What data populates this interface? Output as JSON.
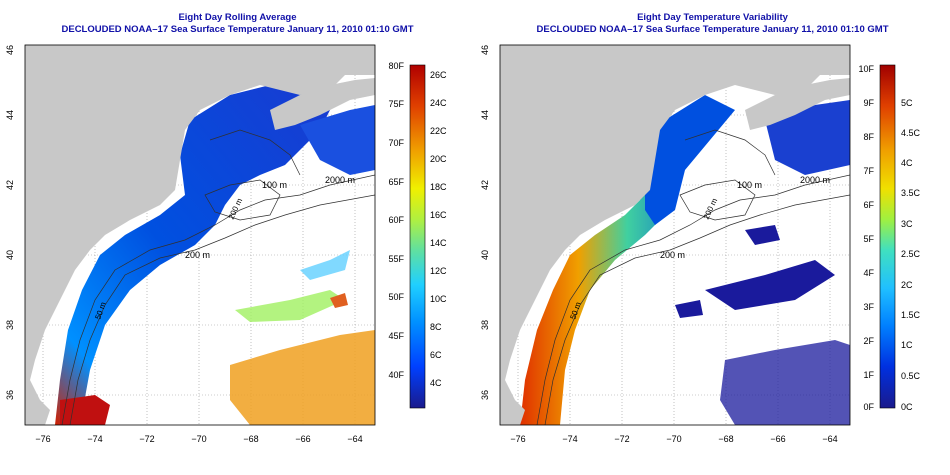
{
  "panels": [
    {
      "id": "left",
      "title": "Eight Day Rolling Average",
      "subtitle": "DECLOUDED NOAA–17 Sea Surface Temperature January 11, 2010 01:10 GMT",
      "x_ticks": [
        "−76",
        "−74",
        "−72",
        "−70",
        "−68",
        "−66",
        "−64"
      ],
      "y_ticks": [
        "36",
        "38",
        "40",
        "42",
        "44",
        "46"
      ],
      "contour_labels": [
        "100 m",
        "200 m",
        "2000 m",
        "50 m",
        "200 m"
      ],
      "colorbar": {
        "gradient": [
          "#1a1a8c",
          "#0040ff",
          "#0090ff",
          "#20d0ff",
          "#60e0a0",
          "#b0f040",
          "#f0f000",
          "#f0a000",
          "#e04000",
          "#b00000"
        ],
        "fahrenheit_ticks": [
          "80F",
          "75F",
          "70F",
          "65F",
          "60F",
          "55F",
          "50F",
          "45F",
          "40F"
        ],
        "celsius_ticks": [
          "26C",
          "24C",
          "22C",
          "20C",
          "18C",
          "16C",
          "14C",
          "12C",
          "10C",
          "8C",
          "6C",
          "4C"
        ]
      }
    },
    {
      "id": "right",
      "title": "Eight Day Temperature Variability",
      "subtitle": "DECLOUDED NOAA–17 Sea Surface Temperature January 11, 2010 01:10 GMT",
      "x_ticks": [
        "−76",
        "−74",
        "−72",
        "−70",
        "−68",
        "−66",
        "−64"
      ],
      "y_ticks": [
        "36",
        "38",
        "40",
        "42",
        "44",
        "46"
      ],
      "contour_labels": [
        "100 m",
        "200 m",
        "2000 m",
        "50 m",
        "200 m"
      ],
      "colorbar": {
        "gradient": [
          "#1a1a8c",
          "#0030e0",
          "#0080ff",
          "#20c0ff",
          "#40e0c0",
          "#a0f040",
          "#f0e000",
          "#f0a000",
          "#e04000",
          "#a00000"
        ],
        "fahrenheit_ticks": [
          "10F",
          "9F",
          "8F",
          "7F",
          "6F",
          "5F",
          "4F",
          "3F",
          "2F",
          "1F",
          "0F"
        ],
        "celsius_ticks": [
          "5C",
          "4.5C",
          "4C",
          "3.5C",
          "3C",
          "2.5C",
          "2C",
          "1.5C",
          "1C",
          "0.5C",
          "0C"
        ]
      }
    }
  ],
  "colors": {
    "land": "#c8c8c8",
    "title": "#1010a8",
    "contour": "#303030"
  }
}
